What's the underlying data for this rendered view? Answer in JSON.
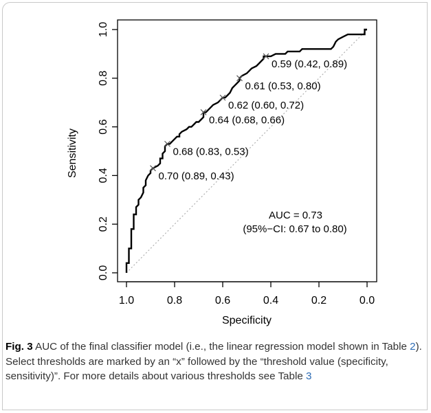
{
  "chart_data": {
    "type": "line",
    "xlabel": "Specificity",
    "ylabel": "Sensitivity",
    "xlim": [
      1.0,
      0.0
    ],
    "ylim": [
      0.0,
      1.0
    ],
    "x_reversed": true,
    "xticks": [
      {
        "value": 1.0,
        "label": "1.0"
      },
      {
        "value": 0.8,
        "label": "0.8"
      },
      {
        "value": 0.6,
        "label": "0.6"
      },
      {
        "value": 0.4,
        "label": "0.4"
      },
      {
        "value": 0.2,
        "label": "0.2"
      },
      {
        "value": 0.0,
        "label": "0.0"
      }
    ],
    "yticks": [
      {
        "value": 0.0,
        "label": "0.0"
      },
      {
        "value": 0.2,
        "label": "0.2"
      },
      {
        "value": 0.4,
        "label": "0.4"
      },
      {
        "value": 0.6,
        "label": "0.6"
      },
      {
        "value": 0.8,
        "label": "0.8"
      },
      {
        "value": 1.0,
        "label": "1.0"
      }
    ],
    "reference_line": {
      "from": [
        1.0,
        0.0
      ],
      "to": [
        0.0,
        1.0
      ],
      "style": "dotted",
      "color": "#b0b0b0"
    },
    "series": [
      {
        "color": "#000000",
        "points": [
          [
            1.0,
            0.0
          ],
          [
            1.0,
            0.04
          ],
          [
            0.99,
            0.04
          ],
          [
            0.99,
            0.1
          ],
          [
            0.98,
            0.1
          ],
          [
            0.98,
            0.18
          ],
          [
            0.97,
            0.18
          ],
          [
            0.97,
            0.24
          ],
          [
            0.96,
            0.24
          ],
          [
            0.96,
            0.27
          ],
          [
            0.95,
            0.28
          ],
          [
            0.95,
            0.3
          ],
          [
            0.94,
            0.31
          ],
          [
            0.93,
            0.33
          ],
          [
            0.93,
            0.35
          ],
          [
            0.92,
            0.36
          ],
          [
            0.92,
            0.38
          ],
          [
            0.91,
            0.4
          ],
          [
            0.9,
            0.41
          ],
          [
            0.9,
            0.42
          ],
          [
            0.89,
            0.43
          ],
          [
            0.87,
            0.44
          ],
          [
            0.86,
            0.45
          ],
          [
            0.86,
            0.47
          ],
          [
            0.85,
            0.47
          ],
          [
            0.85,
            0.49
          ],
          [
            0.84,
            0.5
          ],
          [
            0.84,
            0.52
          ],
          [
            0.83,
            0.53
          ],
          [
            0.82,
            0.53
          ],
          [
            0.81,
            0.54
          ],
          [
            0.8,
            0.55
          ],
          [
            0.79,
            0.56
          ],
          [
            0.78,
            0.56
          ],
          [
            0.78,
            0.57
          ],
          [
            0.77,
            0.58
          ],
          [
            0.75,
            0.59
          ],
          [
            0.74,
            0.6
          ],
          [
            0.73,
            0.6
          ],
          [
            0.72,
            0.61
          ],
          [
            0.71,
            0.62
          ],
          [
            0.7,
            0.62
          ],
          [
            0.69,
            0.63
          ],
          [
            0.68,
            0.64
          ],
          [
            0.68,
            0.66
          ],
          [
            0.67,
            0.66
          ],
          [
            0.66,
            0.67
          ],
          [
            0.65,
            0.68
          ],
          [
            0.64,
            0.69
          ],
          [
            0.62,
            0.7
          ],
          [
            0.61,
            0.71
          ],
          [
            0.6,
            0.72
          ],
          [
            0.59,
            0.72
          ],
          [
            0.58,
            0.73
          ],
          [
            0.57,
            0.74
          ],
          [
            0.56,
            0.76
          ],
          [
            0.55,
            0.77
          ],
          [
            0.54,
            0.78
          ],
          [
            0.53,
            0.79
          ],
          [
            0.53,
            0.8
          ],
          [
            0.52,
            0.81
          ],
          [
            0.5,
            0.82
          ],
          [
            0.49,
            0.83
          ],
          [
            0.48,
            0.84
          ],
          [
            0.46,
            0.85
          ],
          [
            0.45,
            0.86
          ],
          [
            0.44,
            0.87
          ],
          [
            0.43,
            0.88
          ],
          [
            0.43,
            0.89
          ],
          [
            0.4,
            0.89
          ],
          [
            0.38,
            0.9
          ],
          [
            0.34,
            0.9
          ],
          [
            0.33,
            0.91
          ],
          [
            0.28,
            0.91
          ],
          [
            0.27,
            0.92
          ],
          [
            0.15,
            0.92
          ],
          [
            0.14,
            0.93
          ],
          [
            0.13,
            0.95
          ],
          [
            0.12,
            0.96
          ],
          [
            0.1,
            0.97
          ],
          [
            0.08,
            0.98
          ],
          [
            0.01,
            0.98
          ],
          [
            0.01,
            1.0
          ],
          [
            0.0,
            1.0
          ]
        ]
      }
    ],
    "thresholds": [
      {
        "x": 0.89,
        "y": 0.43,
        "label": "0.70 (0.89, 0.43)"
      },
      {
        "x": 0.83,
        "y": 0.53,
        "label": "0.68 (0.83, 0.53)"
      },
      {
        "x": 0.68,
        "y": 0.66,
        "label": "0.64 (0.68, 0.66)"
      },
      {
        "x": 0.6,
        "y": 0.72,
        "label": "0.62 (0.60, 0.72)"
      },
      {
        "x": 0.53,
        "y": 0.8,
        "label": "0.61 (0.53, 0.80)"
      },
      {
        "x": 0.42,
        "y": 0.89,
        "label": "0.59 (0.42, 0.89)"
      }
    ],
    "annotation": [
      "AUC = 0.73",
      "(95%−CI: 0.67 to 0.80)"
    ]
  },
  "caption": {
    "label": "Fig. 3",
    "text_before": "AUC of the final classifier model (i.e., the linear regression model shown in Table ",
    "table_ref_1": "2",
    "text_middle": "). Select thresholds are marked by an “x” followed by the “threshold value (specificity, sensitivity)”. For more details about various thresholds see Table ",
    "table_ref_2": "3"
  }
}
